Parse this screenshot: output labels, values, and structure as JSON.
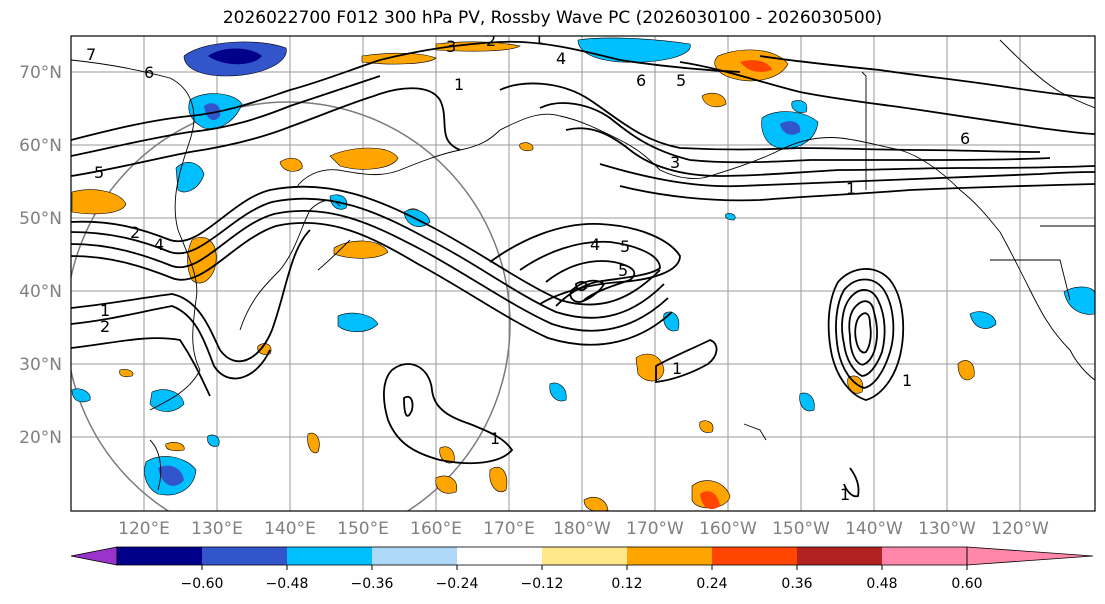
{
  "title": "2026022700 F012 300 hPa PV, Rossby Wave PC (2026030100 - 2026030500)",
  "latitude_labels": [
    "70°N",
    "60°N",
    "50°N",
    "40°N",
    "30°N",
    "20°N"
  ],
  "longitude_labels": [
    "120°E",
    "130°E",
    "140°E",
    "150°E",
    "160°E",
    "170°E",
    "180°W",
    "170°W",
    "160°W",
    "150°W",
    "140°W",
    "130°W",
    "120°W"
  ],
  "colorbar": {
    "colors": [
      "#9933CC",
      "#00008B",
      "#3355CC",
      "#00BFFF",
      "#ADD8F7",
      "#FFFFFF",
      "#FFE88A",
      "#FFA500",
      "#FF4500",
      "#B22222",
      "#FF88AA"
    ],
    "tick_labels": [
      "−0.60",
      "−0.48",
      "−0.36",
      "−0.24",
      "−0.12",
      "0.12",
      "0.24",
      "0.36",
      "0.48",
      "0.60"
    ]
  },
  "contour_labels": [
    "7",
    "6",
    "3",
    "2",
    "1",
    "4",
    "6",
    "5",
    "1",
    "5",
    "1",
    "6",
    "3",
    "1",
    "5",
    "4",
    "2",
    "1",
    "2",
    "4",
    "5",
    "1",
    "1",
    "1",
    "1"
  ]
}
